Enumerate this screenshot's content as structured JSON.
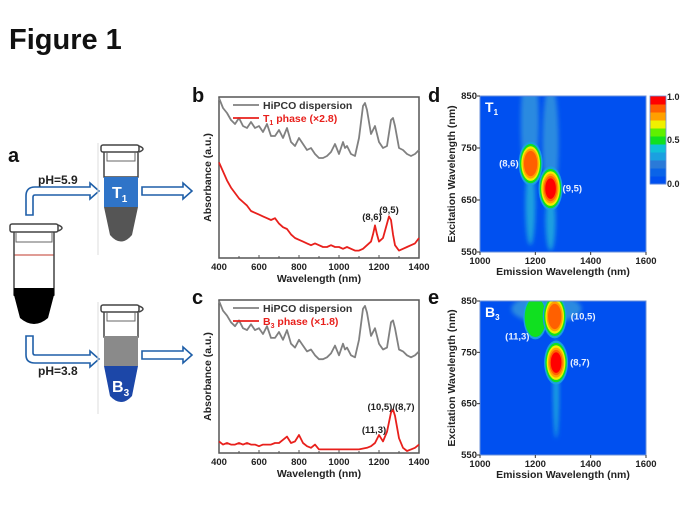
{
  "figure": {
    "title": "Figure 1",
    "panel_labels": {
      "a": "a",
      "b": "b",
      "c": "c",
      "d": "d",
      "e": "e"
    }
  },
  "schematic": {
    "top_arrow_label": "pH=5.9",
    "bottom_arrow_label": "pH=3.8",
    "top_tube": {
      "label": "T",
      "subscript": "1",
      "top_color": "#2f74c8",
      "bottom_color": "#555555"
    },
    "bottom_tube": {
      "label": "B",
      "subscript": "3",
      "top_color": "#8a8a8a",
      "bottom_color": "#1c47a8"
    },
    "source_tube": {
      "bottom_color": "#000000"
    },
    "arrow_color": "#1f5fa8"
  },
  "chart_data": [
    {
      "panel": "b",
      "type": "line",
      "xlabel": "Wavelength (nm)",
      "ylabel": "Absorbance (a.u.)",
      "xlim": [
        400,
        1400
      ],
      "xticks": [
        "400",
        "600",
        "800",
        "1000",
        "1200",
        "1400"
      ],
      "series": [
        {
          "name": "HiPCO dispersion",
          "color": "#808080",
          "x": [
            400,
            420,
            440,
            460,
            480,
            500,
            520,
            540,
            560,
            580,
            600,
            620,
            640,
            660,
            680,
            700,
            720,
            740,
            760,
            780,
            800,
            820,
            840,
            860,
            880,
            900,
            920,
            940,
            960,
            980,
            1000,
            1020,
            1030,
            1040,
            1060,
            1080,
            1100,
            1120,
            1130,
            1140,
            1160,
            1180,
            1200,
            1220,
            1240,
            1260,
            1270,
            1280,
            1300,
            1320,
            1340,
            1360,
            1380,
            1400
          ],
          "y": [
            1.0,
            0.9,
            0.85,
            0.78,
            0.74,
            0.8,
            0.72,
            0.7,
            0.76,
            0.7,
            0.72,
            0.66,
            0.74,
            0.62,
            0.62,
            0.68,
            0.6,
            0.7,
            0.56,
            0.52,
            0.6,
            0.54,
            0.48,
            0.5,
            0.44,
            0.4,
            0.4,
            0.42,
            0.46,
            0.54,
            0.44,
            0.56,
            0.5,
            0.52,
            0.44,
            0.42,
            0.6,
            0.92,
            0.95,
            0.88,
            0.64,
            0.72,
            0.56,
            0.5,
            0.52,
            0.78,
            0.8,
            0.72,
            0.5,
            0.48,
            0.44,
            0.42,
            0.44,
            0.48
          ]
        },
        {
          "name": "T1 phase (×2.8)",
          "color": "#e8201c",
          "x": [
            400,
            420,
            440,
            460,
            480,
            500,
            520,
            540,
            560,
            580,
            600,
            620,
            640,
            660,
            680,
            700,
            720,
            740,
            760,
            780,
            800,
            820,
            840,
            860,
            880,
            900,
            920,
            940,
            960,
            980,
            1000,
            1020,
            1040,
            1060,
            1080,
            1100,
            1120,
            1140,
            1160,
            1170,
            1180,
            1190,
            1200,
            1220,
            1240,
            1250,
            1260,
            1270,
            1280,
            1300,
            1320,
            1340,
            1360,
            1380,
            1400
          ],
          "y": [
            0.52,
            0.47,
            0.42,
            0.38,
            0.35,
            0.32,
            0.3,
            0.28,
            0.25,
            0.24,
            0.23,
            0.22,
            0.21,
            0.2,
            0.21,
            0.18,
            0.16,
            0.15,
            0.12,
            0.1,
            0.09,
            0.08,
            0.07,
            0.06,
            0.07,
            0.06,
            0.05,
            0.05,
            0.06,
            0.05,
            0.05,
            0.04,
            0.05,
            0.04,
            0.03,
            0.03,
            0.04,
            0.06,
            0.08,
            0.12,
            0.17,
            0.12,
            0.08,
            0.1,
            0.18,
            0.22,
            0.2,
            0.12,
            0.06,
            0.03,
            0.04,
            0.05,
            0.06,
            0.07,
            0.1
          ]
        }
      ],
      "legend": [
        "HiPCO dispersion",
        "T",
        "1",
        " phase (×2.8)"
      ],
      "annotations": [
        {
          "text": "(8,6)",
          "x": 1180
        },
        {
          "text": "(9,5)",
          "x": 1250
        }
      ]
    },
    {
      "panel": "c",
      "type": "line",
      "xlabel": "Wavelength (nm)",
      "ylabel": "Absorbance (a.u.)",
      "xlim": [
        400,
        1400
      ],
      "xticks": [
        "400",
        "600",
        "800",
        "1000",
        "1200",
        "1400"
      ],
      "series": [
        {
          "name": "HiPCO dispersion",
          "color": "#808080",
          "x": [
            400,
            420,
            440,
            460,
            480,
            500,
            520,
            540,
            560,
            580,
            600,
            620,
            640,
            660,
            680,
            700,
            720,
            740,
            760,
            780,
            800,
            820,
            840,
            860,
            880,
            900,
            920,
            940,
            960,
            980,
            1000,
            1020,
            1030,
            1040,
            1060,
            1080,
            1100,
            1120,
            1130,
            1140,
            1160,
            1180,
            1200,
            1220,
            1240,
            1260,
            1270,
            1280,
            1300,
            1320,
            1340,
            1360,
            1380,
            1400
          ],
          "y": [
            1.0,
            0.9,
            0.85,
            0.78,
            0.74,
            0.8,
            0.72,
            0.7,
            0.76,
            0.7,
            0.72,
            0.66,
            0.74,
            0.62,
            0.62,
            0.68,
            0.6,
            0.7,
            0.56,
            0.52,
            0.6,
            0.54,
            0.48,
            0.5,
            0.44,
            0.4,
            0.4,
            0.42,
            0.46,
            0.54,
            0.44,
            0.56,
            0.5,
            0.52,
            0.44,
            0.42,
            0.6,
            0.92,
            0.95,
            0.88,
            0.64,
            0.72,
            0.56,
            0.5,
            0.52,
            0.78,
            0.8,
            0.72,
            0.5,
            0.48,
            0.44,
            0.42,
            0.44,
            0.48
          ]
        },
        {
          "name": "B3 phase (×1.8)",
          "color": "#e8201c",
          "x": [
            400,
            420,
            440,
            460,
            480,
            500,
            520,
            540,
            560,
            580,
            600,
            620,
            640,
            660,
            680,
            700,
            720,
            740,
            760,
            780,
            800,
            820,
            840,
            860,
            880,
            900,
            920,
            940,
            960,
            980,
            1000,
            1050,
            1100,
            1140,
            1160,
            1180,
            1200,
            1210,
            1220,
            1240,
            1260,
            1270,
            1280,
            1300,
            1320,
            1340,
            1360,
            1380,
            1400
          ],
          "y": [
            0.06,
            0.04,
            0.05,
            0.04,
            0.04,
            0.05,
            0.04,
            0.05,
            0.04,
            0.04,
            0.03,
            0.04,
            0.04,
            0.04,
            0.05,
            0.05,
            0.07,
            0.09,
            0.05,
            0.06,
            0.1,
            0.05,
            0.03,
            0.02,
            0.04,
            0.01,
            0.01,
            0.01,
            0.01,
            0.01,
            0.01,
            0.01,
            0.01,
            0.02,
            0.03,
            0.05,
            0.1,
            0.08,
            0.06,
            0.12,
            0.24,
            0.26,
            0.22,
            0.08,
            0.02,
            0.0,
            0.01,
            0.02,
            0.04
          ]
        }
      ],
      "legend": [
        "HiPCO dispersion",
        "B",
        "3",
        " phase (×1.8)"
      ],
      "annotations": [
        {
          "text": "(11,3)",
          "x": 1200
        },
        {
          "text": "(10,5)/(8,7)",
          "x": 1270
        }
      ]
    },
    {
      "panel": "d",
      "type": "heatmap",
      "label": "T",
      "label_sub": "1",
      "xlabel": "Emission Wavelength (nm)",
      "ylabel": "Excitation Wavelength (nm)",
      "xlim": [
        1000,
        1600
      ],
      "ylim": [
        550,
        850
      ],
      "xticks": [
        "1000",
        "1200",
        "1400",
        "1600"
      ],
      "yticks": [
        "550",
        "650",
        "750",
        "850"
      ],
      "peaks": [
        {
          "label": "(8,6)",
          "em": 1183,
          "ex": 720,
          "intensity": 0.9
        },
        {
          "label": "(9,5)",
          "em": 1255,
          "ex": 672,
          "intensity": 1.0
        }
      ],
      "colorbar": {
        "min": 0.0,
        "max": 1.0,
        "ticks": [
          "1.0",
          "0.5",
          "0.0"
        ]
      }
    },
    {
      "panel": "e",
      "type": "heatmap",
      "label": "B",
      "label_sub": "3",
      "xlabel": "Emission Wavelength (nm)",
      "ylabel": "Excitation Wavelength (nm)",
      "xlim": [
        1000,
        1600
      ],
      "ylim": [
        550,
        850
      ],
      "xticks": [
        "1000",
        "1200",
        "1400",
        "1600"
      ],
      "yticks": [
        "550",
        "650",
        "750",
        "850"
      ],
      "peaks": [
        {
          "label": "(11,3)",
          "em": 1200,
          "ex": 818,
          "intensity": 0.55
        },
        {
          "label": "(10,5)",
          "em": 1270,
          "ex": 820,
          "intensity": 0.95
        },
        {
          "label": "(8,7)",
          "em": 1275,
          "ex": 730,
          "intensity": 1.0
        }
      ]
    }
  ],
  "colormap": [
    "#0050f0",
    "#0a64e8",
    "#2a7ad8",
    "#1aa0e0",
    "#10c0d8",
    "#10e020",
    "#60f000",
    "#f0f000",
    "#ffa000",
    "#ff6000",
    "#ff0000"
  ]
}
